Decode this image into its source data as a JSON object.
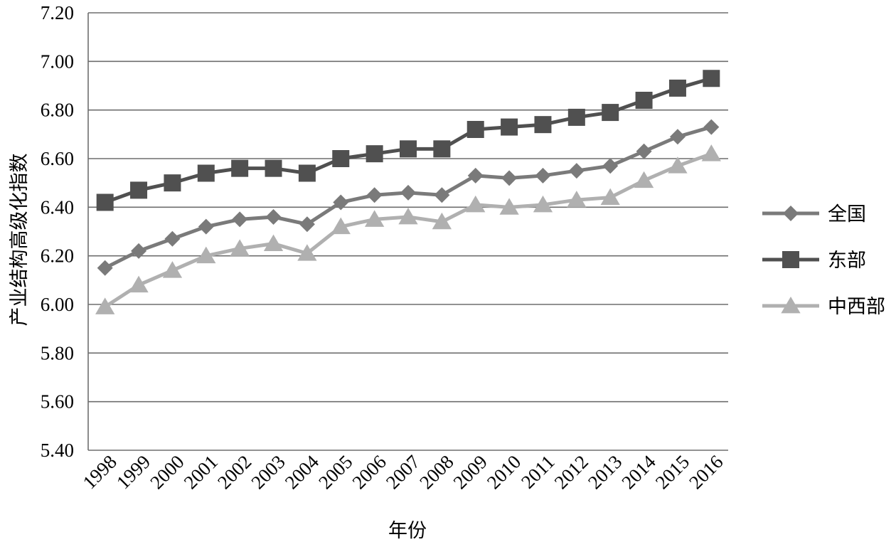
{
  "chart_data": {
    "type": "line",
    "title": "",
    "xlabel": "年份",
    "ylabel": "产业结构高级化指数",
    "x": [
      "1998",
      "1999",
      "2000",
      "2001",
      "2002",
      "2003",
      "2004",
      "2005",
      "2006",
      "2007",
      "2008",
      "2009",
      "2010",
      "2011",
      "2012",
      "2013",
      "2014",
      "2015",
      "2016"
    ],
    "ylim": [
      5.4,
      7.2
    ],
    "yticks": [
      "5.40",
      "5.60",
      "5.80",
      "6.00",
      "6.20",
      "6.40",
      "6.60",
      "6.80",
      "7.00",
      "7.20"
    ],
    "grid": "horizontal",
    "legend_position": "right",
    "series": [
      {
        "name": "全国",
        "marker": "diamond",
        "color": "#7a7a7a",
        "values": [
          6.15,
          6.22,
          6.27,
          6.32,
          6.35,
          6.36,
          6.33,
          6.42,
          6.45,
          6.46,
          6.45,
          6.53,
          6.52,
          6.53,
          6.55,
          6.57,
          6.63,
          6.69,
          6.73
        ]
      },
      {
        "name": "东部",
        "marker": "square",
        "color": "#505050",
        "values": [
          6.42,
          6.47,
          6.5,
          6.54,
          6.56,
          6.56,
          6.54,
          6.6,
          6.62,
          6.64,
          6.64,
          6.72,
          6.73,
          6.74,
          6.77,
          6.79,
          6.84,
          6.89,
          6.93
        ]
      },
      {
        "name": "中西部",
        "marker": "triangle",
        "color": "#b0b0b0",
        "values": [
          5.99,
          6.08,
          6.14,
          6.2,
          6.23,
          6.25,
          6.21,
          6.32,
          6.35,
          6.36,
          6.34,
          6.41,
          6.4,
          6.41,
          6.43,
          6.44,
          6.51,
          6.57,
          6.62
        ]
      }
    ]
  }
}
